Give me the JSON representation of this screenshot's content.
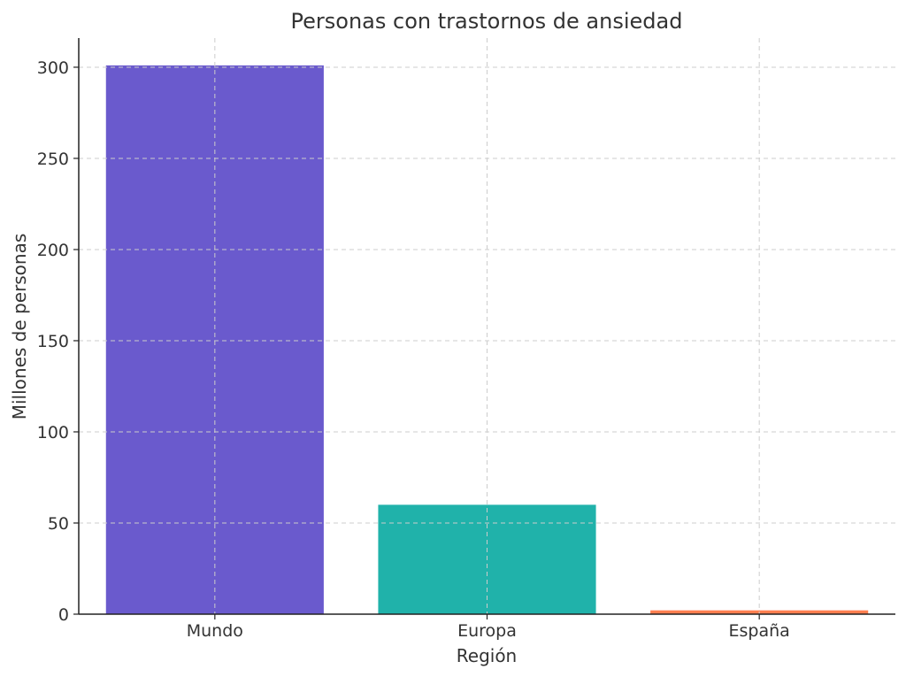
{
  "chart_data": {
    "type": "bar",
    "title": "Personas con trastornos de ansiedad",
    "xlabel": "Región",
    "ylabel": "Millones de personas",
    "categories": [
      "Mundo",
      "Europa",
      "España"
    ],
    "values": [
      301,
      60,
      2.1
    ],
    "colors": [
      "#6A5ACD",
      "#20B2AA",
      "#FF7F50"
    ],
    "ylim": [
      0,
      316
    ],
    "yticks": [
      0,
      50,
      100,
      150,
      200,
      250,
      300
    ],
    "grid": true
  }
}
